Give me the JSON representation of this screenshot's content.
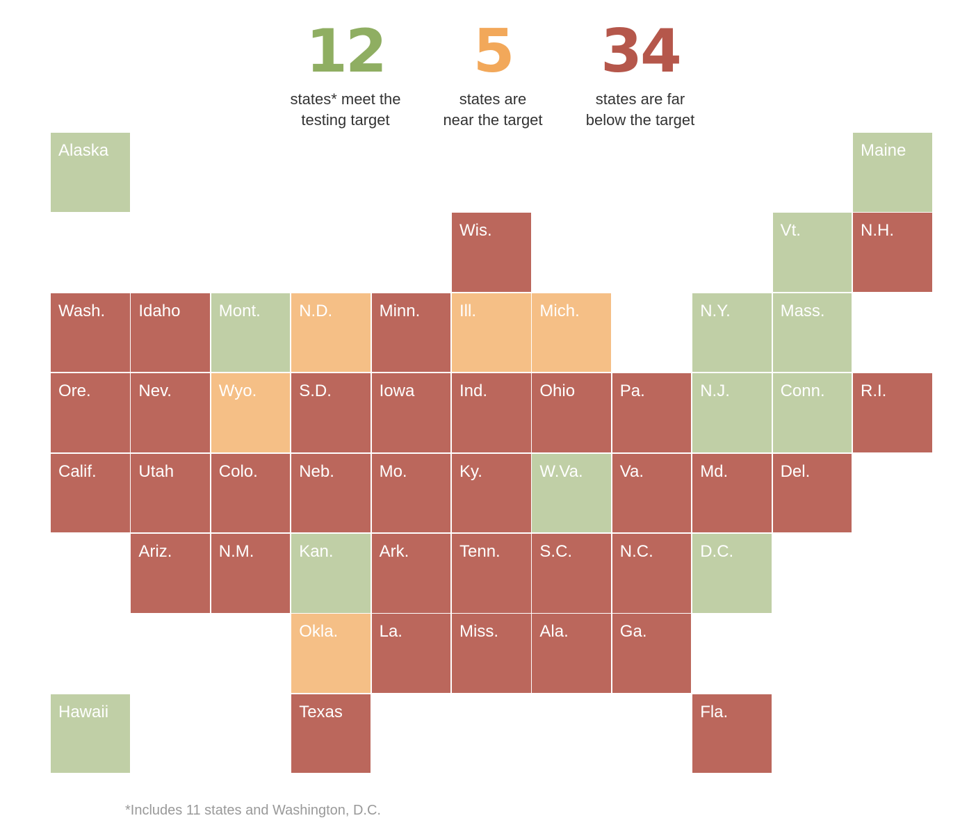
{
  "summary": [
    {
      "count": "12",
      "text_line1": "states* meet the",
      "text_line2": "testing target",
      "category": "meet",
      "color": "#8fae62"
    },
    {
      "count": "5",
      "text_line1": "states are",
      "text_line2": "near the target",
      "category": "near",
      "color": "#f2a85a"
    },
    {
      "count": "34",
      "text_line1": "states are far",
      "text_line2": "below the target",
      "category": "below",
      "color": "#b5574b"
    }
  ],
  "footnote": "*Includes 11 states and Washington, D.C.",
  "chart_data": {
    "type": "heatmap",
    "title": "",
    "subtitle_counts": {
      "meet": 12,
      "near": 5,
      "below": 34
    },
    "legend": [
      {
        "category": "meet",
        "label": "states* meet the testing target",
        "color": "#c0cfa6"
      },
      {
        "category": "near",
        "label": "states are near the target",
        "color": "#f5bf86"
      },
      {
        "category": "below",
        "label": "states are far below the target",
        "color": "#bb675c"
      }
    ],
    "grid": {
      "columns": 11,
      "rows": 8
    },
    "states": [
      {
        "name": "Alaska",
        "col": 0,
        "row": 0,
        "category": "meet"
      },
      {
        "name": "Maine",
        "col": 10,
        "row": 0,
        "category": "meet"
      },
      {
        "name": "Wis.",
        "col": 5,
        "row": 1,
        "category": "below"
      },
      {
        "name": "Vt.",
        "col": 9,
        "row": 1,
        "category": "meet"
      },
      {
        "name": "N.H.",
        "col": 10,
        "row": 1,
        "category": "below"
      },
      {
        "name": "Wash.",
        "col": 0,
        "row": 2,
        "category": "below"
      },
      {
        "name": "Idaho",
        "col": 1,
        "row": 2,
        "category": "below"
      },
      {
        "name": "Mont.",
        "col": 2,
        "row": 2,
        "category": "meet"
      },
      {
        "name": "N.D.",
        "col": 3,
        "row": 2,
        "category": "near"
      },
      {
        "name": "Minn.",
        "col": 4,
        "row": 2,
        "category": "below"
      },
      {
        "name": "Ill.",
        "col": 5,
        "row": 2,
        "category": "near"
      },
      {
        "name": "Mich.",
        "col": 6,
        "row": 2,
        "category": "near"
      },
      {
        "name": "N.Y.",
        "col": 8,
        "row": 2,
        "category": "meet"
      },
      {
        "name": "Mass.",
        "col": 9,
        "row": 2,
        "category": "meet"
      },
      {
        "name": "Ore.",
        "col": 0,
        "row": 3,
        "category": "below"
      },
      {
        "name": "Nev.",
        "col": 1,
        "row": 3,
        "category": "below"
      },
      {
        "name": "Wyo.",
        "col": 2,
        "row": 3,
        "category": "near"
      },
      {
        "name": "S.D.",
        "col": 3,
        "row": 3,
        "category": "below"
      },
      {
        "name": "Iowa",
        "col": 4,
        "row": 3,
        "category": "below"
      },
      {
        "name": "Ind.",
        "col": 5,
        "row": 3,
        "category": "below"
      },
      {
        "name": "Ohio",
        "col": 6,
        "row": 3,
        "category": "below"
      },
      {
        "name": "Pa.",
        "col": 7,
        "row": 3,
        "category": "below"
      },
      {
        "name": "N.J.",
        "col": 8,
        "row": 3,
        "category": "meet"
      },
      {
        "name": "Conn.",
        "col": 9,
        "row": 3,
        "category": "meet"
      },
      {
        "name": "R.I.",
        "col": 10,
        "row": 3,
        "category": "below"
      },
      {
        "name": "Calif.",
        "col": 0,
        "row": 4,
        "category": "below"
      },
      {
        "name": "Utah",
        "col": 1,
        "row": 4,
        "category": "below"
      },
      {
        "name": "Colo.",
        "col": 2,
        "row": 4,
        "category": "below"
      },
      {
        "name": "Neb.",
        "col": 3,
        "row": 4,
        "category": "below"
      },
      {
        "name": "Mo.",
        "col": 4,
        "row": 4,
        "category": "below"
      },
      {
        "name": "Ky.",
        "col": 5,
        "row": 4,
        "category": "below"
      },
      {
        "name": "W.Va.",
        "col": 6,
        "row": 4,
        "category": "meet"
      },
      {
        "name": "Va.",
        "col": 7,
        "row": 4,
        "category": "below"
      },
      {
        "name": "Md.",
        "col": 8,
        "row": 4,
        "category": "below"
      },
      {
        "name": "Del.",
        "col": 9,
        "row": 4,
        "category": "below"
      },
      {
        "name": "Ariz.",
        "col": 1,
        "row": 5,
        "category": "below"
      },
      {
        "name": "N.M.",
        "col": 2,
        "row": 5,
        "category": "below"
      },
      {
        "name": "Kan.",
        "col": 3,
        "row": 5,
        "category": "meet"
      },
      {
        "name": "Ark.",
        "col": 4,
        "row": 5,
        "category": "below"
      },
      {
        "name": "Tenn.",
        "col": 5,
        "row": 5,
        "category": "below"
      },
      {
        "name": "S.C.",
        "col": 6,
        "row": 5,
        "category": "below"
      },
      {
        "name": "N.C.",
        "col": 7,
        "row": 5,
        "category": "below"
      },
      {
        "name": "D.C.",
        "col": 8,
        "row": 5,
        "category": "meet"
      },
      {
        "name": "Okla.",
        "col": 3,
        "row": 6,
        "category": "near"
      },
      {
        "name": "La.",
        "col": 4,
        "row": 6,
        "category": "below"
      },
      {
        "name": "Miss.",
        "col": 5,
        "row": 6,
        "category": "below"
      },
      {
        "name": "Ala.",
        "col": 6,
        "row": 6,
        "category": "below"
      },
      {
        "name": "Ga.",
        "col": 7,
        "row": 6,
        "category": "below"
      },
      {
        "name": "Hawaii",
        "col": 0,
        "row": 7,
        "category": "meet"
      },
      {
        "name": "Texas",
        "col": 3,
        "row": 7,
        "category": "below"
      },
      {
        "name": "Fla.",
        "col": 8,
        "row": 7,
        "category": "below"
      }
    ]
  }
}
